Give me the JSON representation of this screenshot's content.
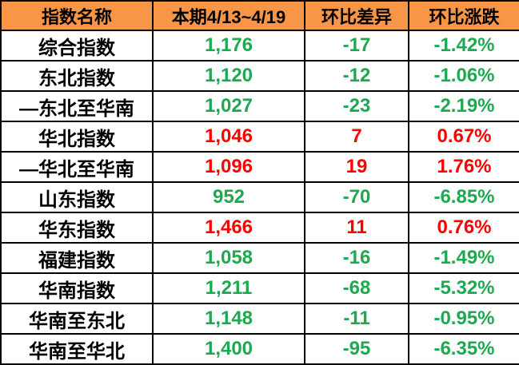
{
  "colors": {
    "header_bg": "#F79646",
    "up": "#FF0000",
    "down": "#1EA850",
    "border": "#000000",
    "text": "#000000"
  },
  "table": {
    "columns": {
      "name": "指数名称",
      "current": "本期4/13~4/19",
      "diff": "环比差异",
      "pct": "环比涨跌"
    },
    "rows": [
      {
        "name": "综合指数",
        "value": "1,176",
        "diff": "-17",
        "pct": "-1.42%",
        "trend": "down"
      },
      {
        "name": "东北指数",
        "value": "1,120",
        "diff": "-12",
        "pct": "-1.06%",
        "trend": "down"
      },
      {
        "name": "—东北至华南",
        "value": "1,027",
        "diff": "-23",
        "pct": "-2.19%",
        "trend": "down"
      },
      {
        "name": "华北指数",
        "value": "1,046",
        "diff": "7",
        "pct": "0.67%",
        "trend": "up"
      },
      {
        "name": "—华北至华南",
        "value": "1,096",
        "diff": "19",
        "pct": "1.76%",
        "trend": "up"
      },
      {
        "name": "山东指数",
        "value": "952",
        "diff": "-70",
        "pct": "-6.85%",
        "trend": "down"
      },
      {
        "name": "华东指数",
        "value": "1,466",
        "diff": "11",
        "pct": "0.76%",
        "trend": "up"
      },
      {
        "name": "福建指数",
        "value": "1,058",
        "diff": "-16",
        "pct": "-1.49%",
        "trend": "down"
      },
      {
        "name": "华南指数",
        "value": "1,211",
        "diff": "-68",
        "pct": "-5.32%",
        "trend": "down"
      },
      {
        "name": "华南至东北",
        "value": "1,148",
        "diff": "-11",
        "pct": "-0.95%",
        "trend": "down"
      },
      {
        "name": "华南至华北",
        "value": "1,400",
        "diff": "-95",
        "pct": "-6.35%",
        "trend": "down"
      }
    ]
  },
  "chart_data": {
    "type": "table",
    "title": "",
    "columns": [
      "指数名称",
      "本期4/13~4/19",
      "环比差异",
      "环比涨跌"
    ],
    "rows": [
      [
        "综合指数",
        1176,
        -17,
        -1.42
      ],
      [
        "东北指数",
        1120,
        -12,
        -1.06
      ],
      [
        "—东北至华南",
        1027,
        -23,
        -2.19
      ],
      [
        "华北指数",
        1046,
        7,
        0.67
      ],
      [
        "—华北至华南",
        1096,
        19,
        1.76
      ],
      [
        "山东指数",
        952,
        -70,
        -6.85
      ],
      [
        "华东指数",
        1466,
        11,
        0.76
      ],
      [
        "福建指数",
        1058,
        -16,
        -1.49
      ],
      [
        "华南指数",
        1211,
        -68,
        -5.32
      ],
      [
        "华南至东北",
        1148,
        -11,
        -0.95
      ],
      [
        "华南至华北",
        1400,
        -95,
        -6.35
      ]
    ],
    "notes": "pct column values are percentages; positive=red(up), negative=green(down)"
  }
}
